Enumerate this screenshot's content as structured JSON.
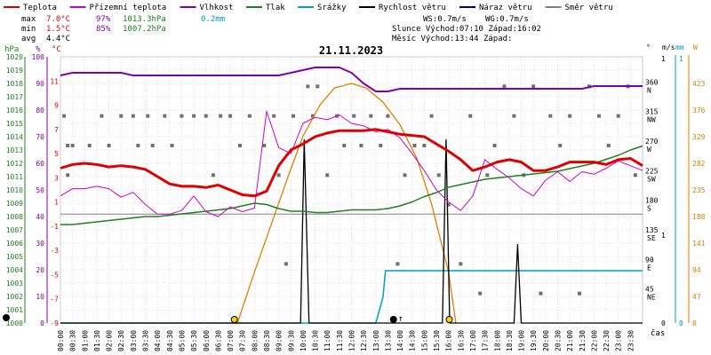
{
  "legend": [
    {
      "label": "Teplota",
      "color": "#e00000"
    },
    {
      "label": "Přízemní teplota",
      "color": "#d000d0"
    },
    {
      "label": "Vlhkost",
      "color": "#8000b0"
    },
    {
      "label": "Tlak",
      "color": "#208020"
    },
    {
      "label": "Srážky",
      "color": "#00a0c0"
    },
    {
      "label": "Rychlost větru",
      "color": "#000000"
    },
    {
      "label": "Náraz větru",
      "color": "#000080"
    },
    {
      "label": "Směr větru",
      "color": "#808080"
    }
  ],
  "stats": {
    "max": {
      "label": "max",
      "temp": "7.0°C",
      "hum": "97%",
      "press": "1013.3hPa",
      "rain": "0.2mm"
    },
    "min": {
      "label": "min",
      "temp": "1.5°C",
      "hum": "85%",
      "press": "1007.2hPa"
    },
    "avg": {
      "label": "avg",
      "temp": "4.4°C"
    }
  },
  "info": {
    "ws": "WS:0.7m/s",
    "wg": "WG:0.7m/s",
    "sun": "Slunce Východ:07:10  Západ:16:02",
    "moon": "Měsíc  Východ:13:44  Západ:"
  },
  "colors": {
    "temp": "#e00000",
    "dew": "#d000d0",
    "hum": "#8000b0",
    "press": "#208020",
    "rain": "#00a0c0",
    "wind": "#000000",
    "gust": "#000080",
    "dir": "#808080",
    "sun": "#e08000",
    "rad": "#e08000"
  },
  "chart_data": {
    "type": "line",
    "date": "21.11.2023",
    "xlabel": "čas",
    "x_ticks": [
      "00:00",
      "00:30",
      "01:00",
      "01:30",
      "02:00",
      "02:30",
      "03:00",
      "03:30",
      "04:00",
      "04:30",
      "05:00",
      "05:30",
      "06:00",
      "06:30",
      "07:00",
      "07:30",
      "08:00",
      "08:30",
      "09:00",
      "09:30",
      "10:00",
      "10:30",
      "11:00",
      "11:30",
      "12:00",
      "12:30",
      "13:00",
      "13:30",
      "14:00",
      "14:30",
      "15:00",
      "15:30",
      "16:00",
      "16:30",
      "17:00",
      "17:30",
      "18:00",
      "18:30",
      "19:00",
      "19:30",
      "20:00",
      "20:30",
      "21:00",
      "21:30",
      "22:00",
      "22:30",
      "23:00",
      "23:30"
    ],
    "axes": {
      "pressure": {
        "label": "hPa",
        "range": [
          1000,
          1020
        ],
        "ticks": [
          1000,
          1001,
          1002,
          1003,
          1004,
          1005,
          1006,
          1007,
          1008,
          1009,
          1010,
          1011,
          1012,
          1013,
          1014,
          1015,
          1016,
          1017,
          1018,
          1019,
          1020
        ]
      },
      "humidity": {
        "label": "%",
        "range": [
          0,
          100
        ],
        "ticks": [
          0,
          10,
          20,
          30,
          40,
          50,
          60,
          70,
          80,
          90,
          100
        ]
      },
      "temperature": {
        "label": "°C",
        "range": [
          -9,
          13
        ],
        "ticks": [
          -9,
          -7,
          -5,
          -3,
          -1,
          1,
          3,
          5,
          7,
          9,
          11
        ]
      },
      "wind_direction": {
        "label": "°",
        "ticks": [
          {
            "v": 45,
            "d": "NE"
          },
          {
            "v": 90,
            "d": "E"
          },
          {
            "v": 135,
            "d": "SE"
          },
          {
            "v": 180,
            "d": "S"
          },
          {
            "v": 225,
            "d": "SW"
          },
          {
            "v": 270,
            "d": "W"
          },
          {
            "v": 315,
            "d": "NW"
          },
          {
            "v": 360,
            "d": "N"
          }
        ]
      },
      "wind_speed": {
        "label": "m/s",
        "range": [
          0,
          1
        ],
        "ticks": [
          0,
          1
        ]
      },
      "rain": {
        "label": "mm",
        "range": [
          0,
          1
        ],
        "ticks": [
          0,
          1
        ]
      },
      "radiation": {
        "label": "W",
        "ticks": [
          0,
          47,
          94,
          141,
          188,
          235,
          282,
          329,
          376,
          423
        ]
      }
    },
    "series": [
      {
        "name": "Teplota",
        "unit": "°C",
        "x": [
          0,
          0.5,
          1,
          1.5,
          2,
          2.5,
          3,
          3.5,
          4,
          4.5,
          5,
          5.5,
          6,
          6.5,
          7,
          7.5,
          8,
          8.5,
          9,
          9.5,
          10,
          10.5,
          11,
          11.5,
          12,
          12.5,
          13,
          13.5,
          14,
          14.5,
          15,
          15.5,
          16,
          16.5,
          17,
          17.5,
          18,
          18.5,
          19,
          19.5,
          20,
          20.5,
          21,
          21.5,
          22,
          22.5,
          23,
          23.5,
          24
        ],
        "y": [
          3.8,
          4.1,
          4.2,
          4.1,
          3.9,
          4.0,
          3.9,
          3.7,
          3.1,
          2.5,
          2.3,
          2.3,
          2.2,
          2.4,
          2.0,
          1.6,
          1.5,
          1.9,
          4.0,
          5.3,
          5.8,
          6.4,
          6.7,
          6.9,
          6.9,
          6.9,
          7.0,
          6.8,
          6.6,
          6.5,
          6.4,
          5.8,
          5.2,
          4.5,
          3.6,
          3.9,
          4.3,
          4.5,
          4.3,
          3.6,
          3.6,
          3.9,
          4.3,
          4.3,
          4.3,
          4.1,
          4.5,
          4.6,
          4.0
        ]
      },
      {
        "name": "Přízemní teplota",
        "unit": "°C",
        "x": [
          0,
          0.5,
          1,
          1.5,
          2,
          2.5,
          3,
          3.5,
          4,
          4.5,
          5,
          5.5,
          6,
          6.5,
          7,
          7.5,
          8,
          8.5,
          9,
          9.5,
          10,
          10.5,
          11,
          11.5,
          12,
          12.5,
          13,
          13.5,
          14,
          14.5,
          15,
          15.5,
          16,
          16.5,
          17,
          17.5,
          18,
          18.5,
          19,
          19.5,
          20,
          20.5,
          21,
          21.5,
          22,
          22.5,
          23,
          23.5,
          24
        ],
        "y": [
          1.5,
          2.1,
          2.1,
          2.3,
          2.1,
          1.4,
          1.8,
          0.8,
          0.0,
          0.0,
          0.3,
          1.5,
          0.2,
          -0.2,
          0.6,
          0.2,
          0.5,
          8.5,
          5.5,
          5.0,
          7.5,
          8.0,
          7.8,
          8.2,
          7.5,
          7.3,
          6.8,
          7.0,
          6.3,
          5.0,
          3.6,
          2.0,
          1.0,
          0.3,
          1.5,
          4.5,
          3.7,
          3.0,
          2.1,
          1.5,
          2.8,
          3.5,
          2.7,
          3.5,
          3.3,
          3.8,
          4.4,
          4.0,
          3.6
        ]
      },
      {
        "name": "Vlhkost",
        "unit": "%",
        "x": [
          0,
          0.5,
          1,
          1.5,
          2,
          2.5,
          3,
          3.5,
          4,
          4.5,
          5,
          5.5,
          6,
          6.5,
          7,
          7.5,
          8,
          8.5,
          9,
          9.5,
          10,
          10.5,
          11,
          11.5,
          12,
          12.5,
          13,
          13.5,
          14,
          14.5,
          15,
          15.5,
          16,
          16.5,
          17,
          17.5,
          18,
          18.5,
          19,
          19.5,
          20,
          20.5,
          21,
          21.5,
          22,
          22.5,
          23,
          23.5,
          24
        ],
        "y": [
          93,
          94,
          94,
          94,
          94,
          94,
          93,
          93,
          93,
          93,
          93,
          93,
          93,
          93,
          93,
          93,
          93,
          93,
          93,
          94,
          95,
          96,
          96,
          96,
          94,
          90,
          87,
          87,
          88,
          88,
          88,
          88,
          88,
          88,
          88,
          88,
          88,
          88,
          88,
          88,
          88,
          88,
          88,
          88,
          89,
          89,
          89,
          89,
          89
        ]
      },
      {
        "name": "Tlak",
        "unit": "hPa",
        "x": [
          0,
          0.5,
          1,
          1.5,
          2,
          2.5,
          3,
          3.5,
          4,
          4.5,
          5,
          5.5,
          6,
          6.5,
          7,
          7.5,
          8,
          8.5,
          9,
          9.5,
          10,
          10.5,
          11,
          11.5,
          12,
          12.5,
          13,
          13.5,
          14,
          14.5,
          15,
          15.5,
          16,
          16.5,
          17,
          17.5,
          18,
          18.5,
          19,
          19.5,
          20,
          20.5,
          21,
          21.5,
          22,
          22.5,
          23,
          23.5,
          24
        ],
        "y": [
          1007.4,
          1007.4,
          1007.5,
          1007.6,
          1007.7,
          1007.8,
          1007.9,
          1008.0,
          1008.0,
          1008.1,
          1008.2,
          1008.3,
          1008.4,
          1008.5,
          1008.6,
          1008.8,
          1009.0,
          1008.9,
          1008.6,
          1008.4,
          1008.4,
          1008.3,
          1008.3,
          1008.4,
          1008.5,
          1008.5,
          1008.5,
          1008.6,
          1008.8,
          1009.1,
          1009.5,
          1009.8,
          1010.2,
          1010.4,
          1010.6,
          1010.8,
          1010.9,
          1011.0,
          1011.1,
          1011.2,
          1011.3,
          1011.4,
          1011.6,
          1011.8,
          1012.0,
          1012.3,
          1012.6,
          1013.0,
          1013.3
        ]
      },
      {
        "name": "Srážky",
        "unit": "mm",
        "x": [
          0,
          13,
          13.15,
          13.3,
          13.4,
          24
        ],
        "y": [
          0,
          0,
          0.05,
          0.1,
          0.2,
          0.2
        ]
      },
      {
        "name": "Rychlost větru",
        "unit": "m/s",
        "x": [
          0,
          9.9,
          10.05,
          10.25,
          10.4,
          15.6,
          15.75,
          15.9,
          16.05,
          18.7,
          18.85,
          19.0,
          24
        ],
        "y": [
          0,
          0,
          0.7,
          0,
          0,
          0,
          0,
          0.7,
          0,
          0,
          0.3,
          0,
          0
        ]
      },
      {
        "name": "Radiace",
        "unit": "W",
        "x": [
          7.3,
          8.0,
          8.7,
          9.4,
          10.0,
          10.7,
          11.3,
          12.0,
          12.6,
          13.3,
          14.0,
          14.7,
          15.3,
          16.0,
          16.3
        ],
        "y": [
          0,
          90,
          175,
          260,
          330,
          385,
          415,
          423,
          415,
          390,
          350,
          290,
          210,
          90,
          0
        ]
      }
    ],
    "wind_direction_points": [
      {
        "t": 0.15,
        "d": 315
      },
      {
        "t": 0.3,
        "d": 270
      },
      {
        "t": 0.3,
        "d": 225
      },
      {
        "t": 0.5,
        "d": 270
      },
      {
        "t": 1.2,
        "d": 270
      },
      {
        "t": 1.7,
        "d": 315
      },
      {
        "t": 2.0,
        "d": 270
      },
      {
        "t": 2.5,
        "d": 315
      },
      {
        "t": 3.0,
        "d": 315
      },
      {
        "t": 3.2,
        "d": 270
      },
      {
        "t": 3.6,
        "d": 315
      },
      {
        "t": 3.8,
        "d": 270
      },
      {
        "t": 4.3,
        "d": 315
      },
      {
        "t": 4.6,
        "d": 270
      },
      {
        "t": 5.0,
        "d": 315
      },
      {
        "t": 5.5,
        "d": 315
      },
      {
        "t": 6.0,
        "d": 315
      },
      {
        "t": 6.3,
        "d": 225
      },
      {
        "t": 6.6,
        "d": 315
      },
      {
        "t": 7.0,
        "d": 315
      },
      {
        "t": 7.4,
        "d": 270
      },
      {
        "t": 7.8,
        "d": 315
      },
      {
        "t": 8.4,
        "d": 270
      },
      {
        "t": 8.8,
        "d": 315
      },
      {
        "t": 9.0,
        "d": 225
      },
      {
        "t": 9.3,
        "d": 90
      },
      {
        "t": 9.6,
        "d": 315
      },
      {
        "t": 10.2,
        "d": 360
      },
      {
        "t": 10.4,
        "d": 315
      },
      {
        "t": 10.6,
        "d": 360
      },
      {
        "t": 11.0,
        "d": 225
      },
      {
        "t": 11.4,
        "d": 315
      },
      {
        "t": 11.7,
        "d": 270
      },
      {
        "t": 12.1,
        "d": 315
      },
      {
        "t": 12.4,
        "d": 270
      },
      {
        "t": 12.8,
        "d": 315
      },
      {
        "t": 13.2,
        "d": 270
      },
      {
        "t": 13.5,
        "d": 315
      },
      {
        "t": 13.9,
        "d": 90
      },
      {
        "t": 14.2,
        "d": 225
      },
      {
        "t": 14.6,
        "d": 270
      },
      {
        "t": 15.0,
        "d": 270
      },
      {
        "t": 15.3,
        "d": 315
      },
      {
        "t": 15.6,
        "d": 225
      },
      {
        "t": 16.0,
        "d": 180
      },
      {
        "t": 16.5,
        "d": 90
      },
      {
        "t": 16.9,
        "d": 315
      },
      {
        "t": 17.3,
        "d": 45
      },
      {
        "t": 17.6,
        "d": 225
      },
      {
        "t": 17.9,
        "d": 270
      },
      {
        "t": 18.3,
        "d": 360
      },
      {
        "t": 18.7,
        "d": 315
      },
      {
        "t": 19.1,
        "d": 225
      },
      {
        "t": 19.5,
        "d": 360
      },
      {
        "t": 19.8,
        "d": 45
      },
      {
        "t": 20.2,
        "d": 315
      },
      {
        "t": 20.6,
        "d": 270
      },
      {
        "t": 21.0,
        "d": 315
      },
      {
        "t": 21.4,
        "d": 45
      },
      {
        "t": 21.8,
        "d": 360
      },
      {
        "t": 22.2,
        "d": 315
      },
      {
        "t": 22.6,
        "d": 270
      },
      {
        "t": 23.0,
        "d": 315
      },
      {
        "t": 23.4,
        "d": 360
      },
      {
        "t": 23.7,
        "d": 225
      }
    ],
    "markers": [
      {
        "name": "sunrise",
        "t": 7.17
      },
      {
        "name": "moonrise",
        "t": 13.73
      },
      {
        "name": "sunset",
        "t": 16.03
      }
    ],
    "grid": true
  }
}
